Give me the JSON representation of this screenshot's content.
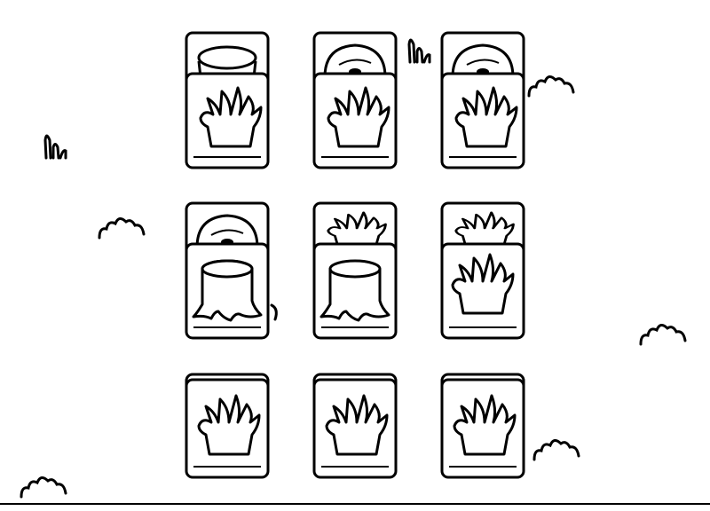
{
  "board": {
    "rows": 3,
    "cols": 3,
    "tiles": [
      {
        "id": 1,
        "back": "stump-top-icon",
        "front": "grass-icon"
      },
      {
        "id": 2,
        "back": "log-round-icon",
        "front": "grass-icon"
      },
      {
        "id": 3,
        "back": "log-round-icon",
        "front": "grass-icon"
      },
      {
        "id": 4,
        "back": "log-round-icon",
        "front": "stump-icon"
      },
      {
        "id": 5,
        "back": "grass-icon",
        "front": "stump-icon"
      },
      {
        "id": 6,
        "back": "grass-icon",
        "front": "grass-icon"
      },
      {
        "id": 7,
        "back": "none",
        "front": "grass-icon"
      },
      {
        "id": 8,
        "back": "none",
        "front": "grass-icon"
      },
      {
        "id": 9,
        "back": "none",
        "front": "grass-icon"
      }
    ]
  },
  "decorations": [
    "grass-tuft-icon"
  ],
  "colors": {
    "line": "#000000",
    "background": "#ffffff"
  }
}
